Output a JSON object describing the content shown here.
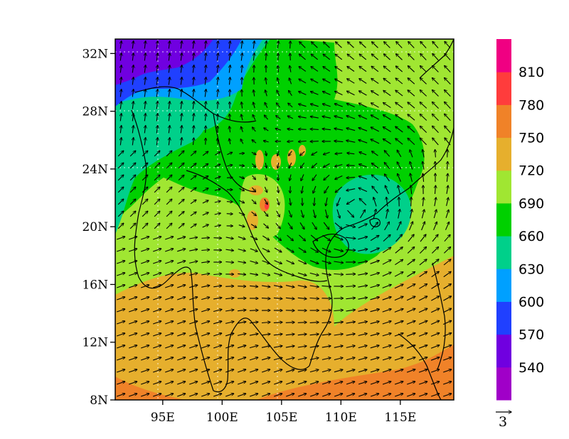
{
  "map": {
    "lon_range": [
      91,
      119.5
    ],
    "lat_range": [
      8,
      33
    ],
    "x_ticks": [
      {
        "value": 95,
        "label": "95E"
      },
      {
        "value": 100,
        "label": "100E"
      },
      {
        "value": 105,
        "label": "105E"
      },
      {
        "value": 110,
        "label": "110E"
      },
      {
        "value": 115,
        "label": "115E"
      }
    ],
    "y_ticks": [
      {
        "value": 8,
        "label": "8N"
      },
      {
        "value": 12,
        "label": "12N"
      },
      {
        "value": 16,
        "label": "16N"
      },
      {
        "value": 20,
        "label": "20N"
      },
      {
        "value": 24,
        "label": "24N"
      },
      {
        "value": 28,
        "label": "28N"
      },
      {
        "value": 32,
        "label": "32N"
      }
    ]
  },
  "colorbar": {
    "levels": [
      510,
      540,
      570,
      600,
      630,
      660,
      690,
      720,
      750,
      780,
      810,
      840
    ],
    "labels": [
      "540",
      "570",
      "600",
      "630",
      "660",
      "690",
      "720",
      "750",
      "780",
      "810"
    ],
    "colors": [
      "#a000c8",
      "#7000e0",
      "#2040ff",
      "#00a0ff",
      "#00d08a",
      "#00d000",
      "#a0e632",
      "#e6af2d",
      "#f08228",
      "#ff3c3c",
      "#f00082"
    ]
  },
  "reference_vector": {
    "label": "3"
  }
}
